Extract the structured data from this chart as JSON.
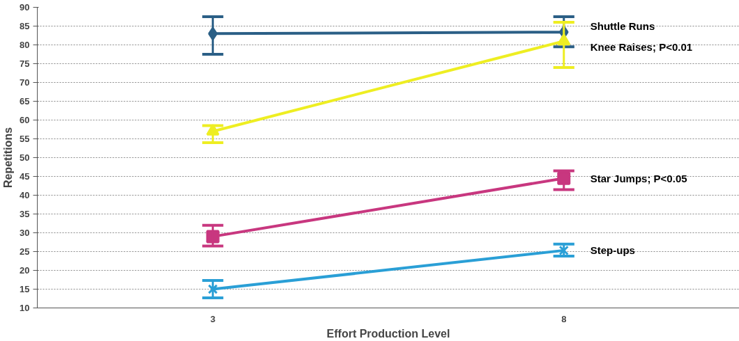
{
  "chart_data": {
    "type": "line",
    "xlabel": "Effort Production Level",
    "ylabel": "Repetitions",
    "categories": [
      "3",
      "8"
    ],
    "series": [
      {
        "name": "Shuttle Runs",
        "color": "#2b5f86",
        "marker": "diamond",
        "values": [
          83,
          83.4
        ],
        "errors": [
          [
            77.5,
            87.5
          ],
          [
            79.5,
            87.5
          ]
        ]
      },
      {
        "name": "Knee Raises; P<0.01",
        "color": "#eeee22",
        "marker": "triangle",
        "values": [
          57,
          81
        ],
        "errors": [
          [
            54,
            58.5
          ],
          [
            74,
            86
          ]
        ]
      },
      {
        "name": "Star Jumps; P<0.05",
        "color": "#c8377f",
        "marker": "square",
        "values": [
          29,
          44.5
        ],
        "errors": [
          [
            26.5,
            32
          ],
          [
            41.5,
            46.5
          ]
        ]
      },
      {
        "name": "Step-ups",
        "color": "#2a9fd6",
        "marker": "cross",
        "values": [
          15,
          25.3
        ],
        "errors": [
          [
            12.7,
            17.3
          ],
          [
            23.8,
            27
          ]
        ]
      }
    ],
    "ylim": [
      10,
      90
    ],
    "yticks": [
      10,
      15,
      20,
      25,
      30,
      35,
      40,
      45,
      50,
      55,
      60,
      65,
      70,
      75,
      80,
      85,
      90
    ],
    "grid": "y",
    "line_style": "solid"
  }
}
